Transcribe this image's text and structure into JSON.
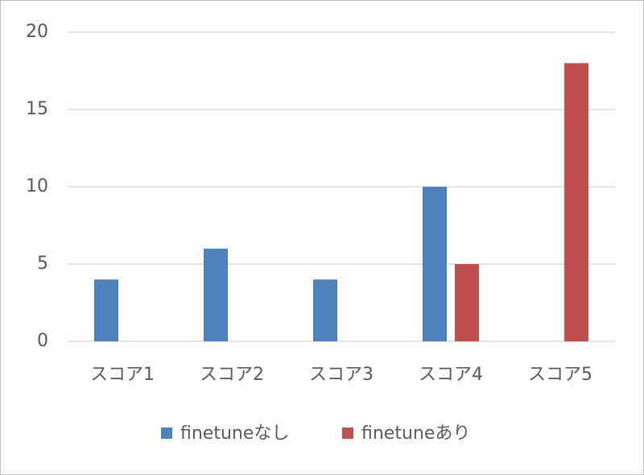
{
  "chart_data": {
    "type": "bar",
    "categories": [
      "スコア1",
      "スコア2",
      "スコア3",
      "スコア4",
      "スコア5"
    ],
    "series": [
      {
        "name": "finetuneなし",
        "color": "#4f81bd",
        "values": [
          4,
          6,
          4,
          10,
          0
        ]
      },
      {
        "name": "finetuneあり",
        "color": "#c0504d",
        "values": [
          0,
          0,
          0,
          5,
          18
        ]
      }
    ],
    "ylim": [
      0,
      20
    ],
    "yticks": [
      0,
      5,
      10,
      15,
      20
    ],
    "grid": true,
    "legend": "bottom"
  }
}
